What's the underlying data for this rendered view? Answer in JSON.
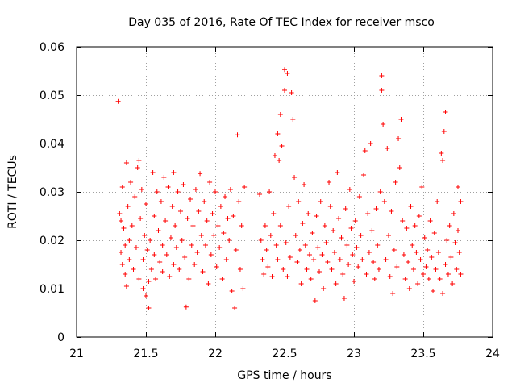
{
  "chart_data": {
    "type": "scatter",
    "title": "Day 035 of 2016, Rate Of TEC Index for receiver msco",
    "xlabel": "GPS time / hours",
    "ylabel": "ROTI / TECUs",
    "xlim": [
      21,
      24
    ],
    "ylim": [
      0,
      0.06
    ],
    "xticks": [
      21,
      21.5,
      22,
      22.5,
      23,
      23.5,
      24
    ],
    "xtick_labels": [
      "21",
      "21.5",
      "22",
      "22.5",
      "23",
      "23.5",
      "24"
    ],
    "yticks": [
      0,
      0.01,
      0.02,
      0.03,
      0.04,
      0.05,
      0.06
    ],
    "ytick_labels": [
      "0",
      "0.01",
      "0.02",
      "0.03",
      "0.04",
      "0.05",
      "0.06"
    ],
    "grid": true,
    "marker": "+",
    "color": "#ff0000",
    "series": [
      {
        "name": "ROTI",
        "points": [
          [
            21.3,
            0.0487
          ],
          [
            21.31,
            0.0255
          ],
          [
            21.32,
            0.024
          ],
          [
            21.32,
            0.0175
          ],
          [
            21.33,
            0.031
          ],
          [
            21.33,
            0.015
          ],
          [
            21.34,
            0.0225
          ],
          [
            21.35,
            0.019
          ],
          [
            21.35,
            0.013
          ],
          [
            21.36,
            0.036
          ],
          [
            21.36,
            0.0105
          ],
          [
            21.37,
            0.027
          ],
          [
            21.38,
            0.02
          ],
          [
            21.38,
            0.016
          ],
          [
            21.39,
            0.032
          ],
          [
            21.4,
            0.023
          ],
          [
            21.41,
            0.014
          ],
          [
            21.42,
            0.029
          ],
          [
            21.43,
            0.0185
          ],
          [
            21.44,
            0.035
          ],
          [
            21.45,
            0.0365
          ],
          [
            21.45,
            0.012
          ],
          [
            21.46,
            0.0245
          ],
          [
            21.47,
            0.0305
          ],
          [
            21.48,
            0.016
          ],
          [
            21.48,
            0.01
          ],
          [
            21.49,
            0.021
          ],
          [
            21.5,
            0.0085
          ],
          [
            21.5,
            0.0275
          ],
          [
            21.51,
            0.018
          ],
          [
            21.52,
            0.0115
          ],
          [
            21.52,
            0.006
          ],
          [
            21.53,
            0.02
          ],
          [
            21.54,
            0.014
          ],
          [
            21.55,
            0.034
          ],
          [
            21.56,
            0.025
          ],
          [
            21.56,
            0.017
          ],
          [
            21.57,
            0.012
          ],
          [
            21.58,
            0.03
          ],
          [
            21.59,
            0.022
          ],
          [
            21.6,
            0.0155
          ],
          [
            21.61,
            0.028
          ],
          [
            21.62,
            0.019
          ],
          [
            21.62,
            0.0135
          ],
          [
            21.63,
            0.033
          ],
          [
            21.64,
            0.024
          ],
          [
            21.65,
            0.017
          ],
          [
            21.66,
            0.031
          ],
          [
            21.67,
            0.0125
          ],
          [
            21.68,
            0.0205
          ],
          [
            21.69,
            0.027
          ],
          [
            21.7,
            0.034
          ],
          [
            21.7,
            0.015
          ],
          [
            21.71,
            0.023
          ],
          [
            21.72,
            0.0185
          ],
          [
            21.73,
            0.03
          ],
          [
            21.74,
            0.014
          ],
          [
            21.75,
            0.026
          ],
          [
            21.76,
            0.02
          ],
          [
            21.77,
            0.0315
          ],
          [
            21.78,
            0.0165
          ],
          [
            21.79,
            0.0062
          ],
          [
            21.8,
            0.0245
          ],
          [
            21.81,
            0.012
          ],
          [
            21.82,
            0.0285
          ],
          [
            21.83,
            0.019
          ],
          [
            21.84,
            0.023
          ],
          [
            21.85,
            0.015
          ],
          [
            21.86,
            0.0305
          ],
          [
            21.87,
            0.0175
          ],
          [
            21.88,
            0.026
          ],
          [
            21.89,
            0.0338
          ],
          [
            21.9,
            0.021
          ],
          [
            21.91,
            0.0135
          ],
          [
            21.92,
            0.028
          ],
          [
            21.93,
            0.019
          ],
          [
            21.94,
            0.024
          ],
          [
            21.95,
            0.011
          ],
          [
            21.96,
            0.032
          ],
          [
            21.97,
            0.017
          ],
          [
            21.98,
            0.0255
          ],
          [
            21.99,
            0.021
          ],
          [
            22.0,
            0.03
          ],
          [
            22.01,
            0.0145
          ],
          [
            22.02,
            0.023
          ],
          [
            22.03,
            0.0185
          ],
          [
            22.04,
            0.027
          ],
          [
            22.05,
            0.012
          ],
          [
            22.06,
            0.0215
          ],
          [
            22.07,
            0.029
          ],
          [
            22.08,
            0.016
          ],
          [
            22.09,
            0.0245
          ],
          [
            22.1,
            0.02
          ],
          [
            22.11,
            0.0305
          ],
          [
            22.12,
            0.0095
          ],
          [
            22.13,
            0.025
          ],
          [
            22.14,
            0.006
          ],
          [
            22.15,
            0.018
          ],
          [
            22.16,
            0.0418
          ],
          [
            22.17,
            0.028
          ],
          [
            22.18,
            0.014
          ],
          [
            22.19,
            0.023
          ],
          [
            22.2,
            0.01
          ],
          [
            22.21,
            0.031
          ],
          [
            22.32,
            0.0295
          ],
          [
            22.33,
            0.02
          ],
          [
            22.34,
            0.016
          ],
          [
            22.35,
            0.013
          ],
          [
            22.36,
            0.023
          ],
          [
            22.37,
            0.018
          ],
          [
            22.38,
            0.0145
          ],
          [
            22.39,
            0.03
          ],
          [
            22.4,
            0.021
          ],
          [
            22.41,
            0.0125
          ],
          [
            22.42,
            0.0255
          ],
          [
            22.43,
            0.0375
          ],
          [
            22.44,
            0.019
          ],
          [
            22.45,
            0.042
          ],
          [
            22.45,
            0.016
          ],
          [
            22.46,
            0.0365
          ],
          [
            22.47,
            0.046
          ],
          [
            22.47,
            0.023
          ],
          [
            22.48,
            0.0395
          ],
          [
            22.49,
            0.014
          ],
          [
            22.5,
            0.0553
          ],
          [
            22.5,
            0.051
          ],
          [
            22.51,
            0.0195
          ],
          [
            22.52,
            0.0545
          ],
          [
            22.52,
            0.0125
          ],
          [
            22.53,
            0.027
          ],
          [
            22.54,
            0.0165
          ],
          [
            22.55,
            0.0505
          ],
          [
            22.56,
            0.045
          ],
          [
            22.57,
            0.033
          ],
          [
            22.58,
            0.021
          ],
          [
            22.59,
            0.0155
          ],
          [
            22.6,
            0.028
          ],
          [
            22.61,
            0.018
          ],
          [
            22.62,
            0.011
          ],
          [
            22.63,
            0.0235
          ],
          [
            22.64,
            0.0315
          ],
          [
            22.65,
            0.019
          ],
          [
            22.66,
            0.014
          ],
          [
            22.67,
            0.0255
          ],
          [
            22.68,
            0.017
          ],
          [
            22.69,
            0.012
          ],
          [
            22.7,
            0.0215
          ],
          [
            22.71,
            0.016
          ],
          [
            22.72,
            0.0075
          ],
          [
            22.73,
            0.025
          ],
          [
            22.74,
            0.0185
          ],
          [
            22.75,
            0.0135
          ],
          [
            22.76,
            0.028
          ],
          [
            22.77,
            0.017
          ],
          [
            22.78,
            0.01
          ],
          [
            22.79,
            0.023
          ],
          [
            22.8,
            0.0195
          ],
          [
            22.81,
            0.0155
          ],
          [
            22.82,
            0.032
          ],
          [
            22.83,
            0.027
          ],
          [
            22.84,
            0.014
          ],
          [
            22.85,
            0.022
          ],
          [
            22.86,
            0.0175
          ],
          [
            22.87,
            0.011
          ],
          [
            22.88,
            0.034
          ],
          [
            22.89,
            0.0245
          ],
          [
            22.9,
            0.016
          ],
          [
            22.91,
            0.0205
          ],
          [
            22.92,
            0.013
          ],
          [
            22.93,
            0.008
          ],
          [
            22.94,
            0.0265
          ],
          [
            22.95,
            0.019
          ],
          [
            22.96,
            0.015
          ],
          [
            22.97,
            0.0305
          ],
          [
            22.98,
            0.0225
          ],
          [
            22.99,
            0.017
          ],
          [
            23.0,
            0.0115
          ],
          [
            23.01,
            0.024
          ],
          [
            23.02,
            0.0185
          ],
          [
            23.03,
            0.0145
          ],
          [
            23.04,
            0.029
          ],
          [
            23.05,
            0.021
          ],
          [
            23.06,
            0.016
          ],
          [
            23.07,
            0.0335
          ],
          [
            23.08,
            0.0385
          ],
          [
            23.09,
            0.013
          ],
          [
            23.1,
            0.0255
          ],
          [
            23.11,
            0.0175
          ],
          [
            23.12,
            0.04
          ],
          [
            23.13,
            0.022
          ],
          [
            23.14,
            0.0155
          ],
          [
            23.15,
            0.012
          ],
          [
            23.16,
            0.0265
          ],
          [
            23.17,
            0.019
          ],
          [
            23.18,
            0.014
          ],
          [
            23.19,
            0.03
          ],
          [
            23.2,
            0.054
          ],
          [
            23.2,
            0.051
          ],
          [
            23.21,
            0.044
          ],
          [
            23.22,
            0.028
          ],
          [
            23.23,
            0.016
          ],
          [
            23.24,
            0.039
          ],
          [
            23.25,
            0.021
          ],
          [
            23.26,
            0.0125
          ],
          [
            23.27,
            0.026
          ],
          [
            23.28,
            0.009
          ],
          [
            23.29,
            0.018
          ],
          [
            23.3,
            0.032
          ],
          [
            23.31,
            0.0145
          ],
          [
            23.32,
            0.041
          ],
          [
            23.33,
            0.035
          ],
          [
            23.34,
            0.045
          ],
          [
            23.35,
            0.024
          ],
          [
            23.36,
            0.017
          ],
          [
            23.37,
            0.012
          ],
          [
            23.38,
            0.0225
          ],
          [
            23.39,
            0.0155
          ],
          [
            23.4,
            0.01
          ],
          [
            23.41,
            0.027
          ],
          [
            23.42,
            0.019
          ],
          [
            23.43,
            0.014
          ],
          [
            23.44,
            0.023
          ],
          [
            23.45,
            0.0175
          ],
          [
            23.46,
            0.011
          ],
          [
            23.47,
            0.025
          ],
          [
            23.48,
            0.016
          ],
          [
            23.49,
            0.031
          ],
          [
            23.5,
            0.013
          ],
          [
            23.51,
            0.0205
          ],
          [
            23.52,
            0.0145
          ],
          [
            23.53,
            0.018
          ],
          [
            23.54,
            0.012
          ],
          [
            23.55,
            0.024
          ],
          [
            23.56,
            0.0165
          ],
          [
            23.57,
            0.0095
          ],
          [
            23.58,
            0.0215
          ],
          [
            23.59,
            0.014
          ],
          [
            23.6,
            0.028
          ],
          [
            23.61,
            0.0175
          ],
          [
            23.62,
            0.012
          ],
          [
            23.63,
            0.038
          ],
          [
            23.64,
            0.0365
          ],
          [
            23.64,
            0.009
          ],
          [
            23.65,
            0.0425
          ],
          [
            23.66,
            0.0465
          ],
          [
            23.66,
            0.015
          ],
          [
            23.67,
            0.02
          ],
          [
            23.68,
            0.013
          ],
          [
            23.69,
            0.023
          ],
          [
            23.7,
            0.0165
          ],
          [
            23.71,
            0.011
          ],
          [
            23.72,
            0.0255
          ],
          [
            23.73,
            0.0195
          ],
          [
            23.74,
            0.014
          ],
          [
            23.75,
            0.031
          ],
          [
            23.75,
            0.022
          ],
          [
            23.76,
            0.0175
          ],
          [
            23.77,
            0.028
          ],
          [
            23.77,
            0.013
          ]
        ]
      }
    ]
  }
}
